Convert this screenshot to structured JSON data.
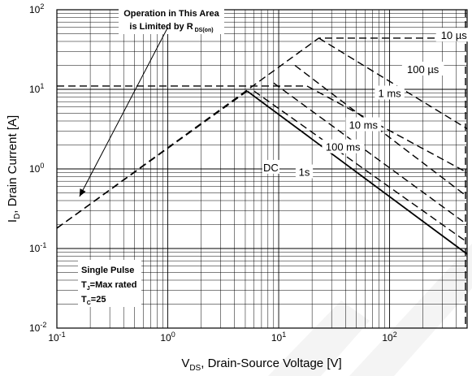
{
  "chart_data": {
    "type": "line",
    "xlabel_main": "V",
    "xlabel_sub": "DS",
    "xlabel_rest": ", Drain-Source Voltage [V]",
    "ylabel_main": "I",
    "ylabel_sub": "D",
    "ylabel_rest": ", Drain Current [A]",
    "x_scale": "log",
    "y_scale": "log",
    "xlim": [
      0.1,
      500
    ],
    "ylim": [
      0.01,
      100
    ],
    "grid": true,
    "x_ticks": [
      {
        "base": "10",
        "exp": "-1",
        "value": 0.1
      },
      {
        "base": "10",
        "exp": "0",
        "value": 1
      },
      {
        "base": "10",
        "exp": "1",
        "value": 10
      },
      {
        "base": "10",
        "exp": "2",
        "value": 100
      }
    ],
    "y_ticks": [
      {
        "base": "10",
        "exp": "2",
        "value": 100
      },
      {
        "base": "10",
        "exp": "1",
        "value": 10
      },
      {
        "base": "10",
        "exp": "0",
        "value": 1
      },
      {
        "base": "10",
        "exp": "-1",
        "value": 0.1
      },
      {
        "base": "10",
        "exp": "-2",
        "value": 0.01
      }
    ],
    "series": [
      {
        "name": "10 µs",
        "style": "dashed",
        "x": [
          0.1,
          23,
          23,
          500
        ],
        "y": [
          0.18,
          44,
          44,
          44
        ]
      },
      {
        "name": "100 µs",
        "style": "dashed",
        "x": [
          23,
          500
        ],
        "y": [
          44,
          3.2
        ]
      },
      {
        "name": "1 ms",
        "style": "dashed",
        "x": [
          0.1,
          18,
          500
        ],
        "y": [
          11,
          11,
          0.9
        ]
      },
      {
        "name": "10 ms",
        "style": "dashed",
        "x": [
          14,
          500
        ],
        "y": [
          20,
          0.45
        ]
      },
      {
        "name": "100 ms",
        "style": "dashed",
        "x": [
          9,
          500
        ],
        "y": [
          12,
          0.2
        ]
      },
      {
        "name": "1s",
        "style": "dashed",
        "x": [
          6,
          500
        ],
        "y": [
          9.5,
          0.12
        ]
      },
      {
        "name": "DC",
        "style": "solid",
        "x": [
          5.2,
          500
        ],
        "y": [
          9.5,
          0.085
        ]
      }
    ],
    "rds_limit": {
      "style": "dashed",
      "x": [
        0.1,
        5.2
      ],
      "y": [
        0.18,
        9.5
      ]
    },
    "vmax_line": {
      "style": "dashed",
      "x": 500
    },
    "series_labels": [
      {
        "text": "10 µs",
        "x": 380,
        "y": 48
      },
      {
        "text": "100 µs",
        "x": 200,
        "y": 18
      },
      {
        "text": "1 ms",
        "x": 100,
        "y": 9
      },
      {
        "text": "10 ms",
        "x": 58,
        "y": 3.6
      },
      {
        "text": "100 ms",
        "x": 38,
        "y": 1.9
      },
      {
        "text": "DC",
        "x": 8.5,
        "y": 1.05
      },
      {
        "text": "1s",
        "x": 17,
        "y": 0.92
      }
    ],
    "annotation_top": {
      "line1": "Operation in This Area",
      "line2_prefix": "is Limited by R",
      "line2_sub": "DS(on)",
      "arrow_from": {
        "x": 1.0,
        "y": 60
      },
      "arrow_to": {
        "x": 0.16,
        "y": 0.45
      }
    },
    "annotation_bottom": {
      "line1": "Single Pulse",
      "line2_prefix": "T",
      "line2_sub": "J",
      "line2_rest": "=Max rated",
      "line3_prefix": "T",
      "line3_sub": "C",
      "line3_rest": "=25"
    }
  }
}
